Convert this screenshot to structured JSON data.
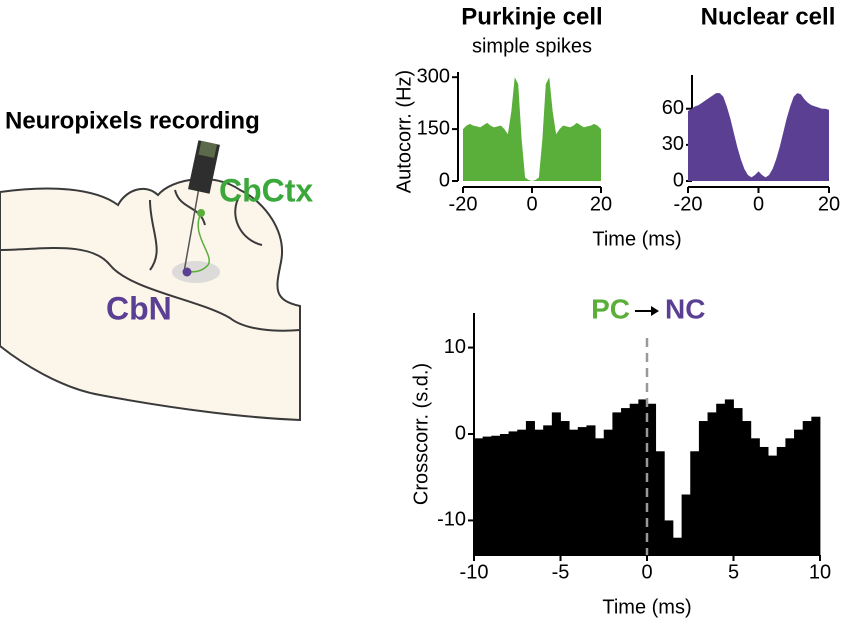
{
  "diagram": {
    "title": "Neuropixels recording",
    "cortex_label": "CbCtx",
    "nucleus_label": "CbN"
  },
  "chart_data": [
    {
      "type": "area",
      "title": "Purkinje cell",
      "subtitle": "simple spikes",
      "y_label": "Autocorr. (Hz)",
      "x_label": "Time (ms)",
      "color": "#5aaf3a",
      "x": [
        -20,
        -19,
        -18,
        -17,
        -16,
        -15,
        -14,
        -13,
        -12,
        -11,
        -10,
        -9,
        -8,
        -7,
        -6,
        -5,
        -4,
        -3,
        -2,
        -1,
        0,
        1,
        2,
        3,
        4,
        5,
        6,
        7,
        8,
        9,
        10,
        11,
        12,
        13,
        14,
        15,
        16,
        17,
        18,
        19,
        20
      ],
      "values": [
        150,
        160,
        165,
        160,
        158,
        155,
        162,
        168,
        160,
        155,
        158,
        160,
        150,
        135,
        200,
        300,
        280,
        120,
        10,
        3,
        0,
        3,
        10,
        120,
        280,
        300,
        200,
        135,
        150,
        160,
        158,
        155,
        160,
        168,
        162,
        155,
        158,
        160,
        165,
        160,
        150
      ],
      "xlim": [
        -20,
        20
      ],
      "xticks": [
        -20,
        0,
        20
      ],
      "ylim": [
        0,
        315
      ],
      "yticks": [
        0,
        150,
        300
      ]
    },
    {
      "type": "area",
      "title": "Nuclear cell",
      "color": "#5b3f93",
      "x": [
        -20,
        -19,
        -18,
        -17,
        -16,
        -15,
        -14,
        -13,
        -12,
        -11,
        -10,
        -9,
        -8,
        -7,
        -6,
        -5,
        -4,
        -3,
        -2,
        -1,
        0,
        1,
        2,
        3,
        4,
        5,
        6,
        7,
        8,
        9,
        10,
        11,
        12,
        13,
        14,
        15,
        16,
        17,
        18,
        19,
        20
      ],
      "values": [
        58,
        60,
        62,
        63,
        65,
        67,
        69,
        71,
        73,
        73,
        70,
        62,
        52,
        40,
        28,
        18,
        10,
        5,
        3,
        5,
        8,
        5,
        3,
        5,
        10,
        18,
        28,
        40,
        52,
        62,
        70,
        73,
        72,
        68,
        65,
        63,
        62,
        61,
        60,
        60,
        59
      ],
      "xlim": [
        -20,
        20
      ],
      "xticks": [
        -20,
        0,
        20
      ],
      "ylim": [
        0,
        88
      ],
      "yticks": [
        0,
        30,
        60
      ]
    },
    {
      "type": "histogram",
      "title_parts": [
        "PC",
        "NC"
      ],
      "title_colors": [
        "#5aaf3a",
        "#5b3f93"
      ],
      "y_label": "Crosscorr. (s.d.)",
      "x_label": "Time (ms)",
      "color": "#000000",
      "bins": [
        -10,
        -9.5,
        -9,
        -8.5,
        -8,
        -7.5,
        -7,
        -6.5,
        -6,
        -5.5,
        -5,
        -4.5,
        -4,
        -3.5,
        -3,
        -2.5,
        -2,
        -1.5,
        -1,
        -0.5,
        0,
        0.5,
        1,
        1.5,
        2,
        2.5,
        3,
        3.5,
        4,
        4.5,
        5,
        5.5,
        6,
        6.5,
        7,
        7.5,
        8,
        8.5,
        9,
        9.5,
        10
      ],
      "values": [
        -0.5,
        -0.3,
        -0.2,
        0,
        0.3,
        0.5,
        1.5,
        0.5,
        1.0,
        2.5,
        1.5,
        0.5,
        0.8,
        1.0,
        -0.5,
        0.5,
        2.5,
        3.0,
        3.5,
        4.0,
        3.5,
        -2,
        -10,
        -12,
        -7,
        -2,
        1.5,
        2.5,
        3.5,
        4.0,
        3.0,
        1.5,
        -0.5,
        -1.5,
        -2.5,
        -1.5,
        -0.5,
        0.5,
        1.5,
        2.0
      ],
      "ref_line_x": 0,
      "xlim": [
        -10,
        10
      ],
      "xticks": [
        -10,
        -5,
        0,
        5,
        10
      ],
      "ylim": [
        -14,
        14
      ],
      "yticks": [
        -10,
        0,
        10
      ]
    }
  ]
}
